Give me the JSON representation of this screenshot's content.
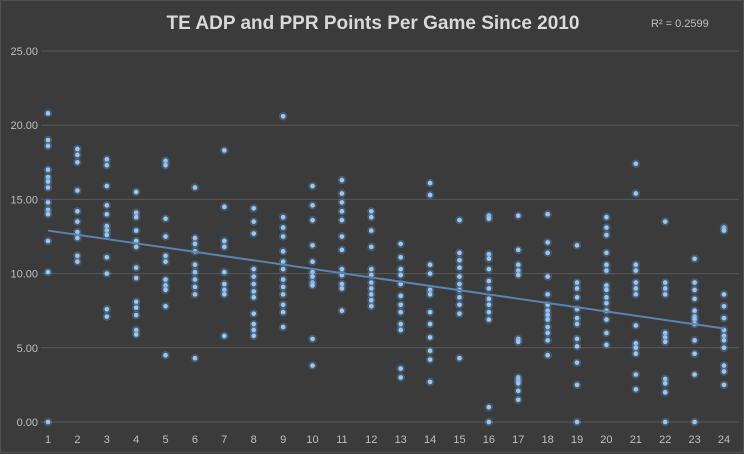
{
  "chart_data": {
    "type": "scatter",
    "title": "TE ADP and PPR Points Per Game Since 2010",
    "annotation": "R² = 0.2599",
    "xlabel": "",
    "ylabel": "",
    "xlim": [
      1,
      24
    ],
    "ylim": [
      0,
      25
    ],
    "x_ticks": [
      1,
      2,
      3,
      4,
      5,
      6,
      7,
      8,
      9,
      10,
      11,
      12,
      13,
      14,
      15,
      16,
      17,
      18,
      19,
      20,
      21,
      22,
      23,
      24
    ],
    "y_ticks": [
      "0.00",
      "5.00",
      "10.00",
      "15.00",
      "20.00",
      "25.00"
    ],
    "grid": "horizontal",
    "legend": "none",
    "colors": {
      "points": "#5b9bd5",
      "trendline": "#5b84b1",
      "grid": "#595959",
      "text": "#bfbfbf"
    },
    "trendline": {
      "type": "linear",
      "x": [
        1,
        24
      ],
      "y": [
        12.9,
        6.3
      ]
    },
    "points": [
      {
        "x": 1,
        "y": [
          20.8,
          19.0,
          18.6,
          17.0,
          16.5,
          16.2,
          15.8,
          14.8,
          14.3,
          14.0,
          12.2,
          10.1,
          0.0
        ]
      },
      {
        "x": 2,
        "y": [
          18.4,
          18.0,
          17.5,
          15.6,
          14.2,
          13.5,
          12.8,
          12.4,
          11.2,
          10.8
        ]
      },
      {
        "x": 3,
        "y": [
          17.7,
          17.3,
          15.9,
          14.6,
          14.0,
          13.2,
          12.9,
          12.6,
          11.1,
          10.0,
          7.6,
          7.1
        ]
      },
      {
        "x": 4,
        "y": [
          15.5,
          14.1,
          13.8,
          12.9,
          12.2,
          11.8,
          10.4,
          9.7,
          8.1,
          7.7,
          7.2,
          6.2,
          5.9
        ]
      },
      {
        "x": 5,
        "y": [
          17.6,
          17.3,
          13.7,
          12.5,
          11.2,
          10.8,
          9.6,
          9.2,
          8.9,
          7.8,
          4.5
        ]
      },
      {
        "x": 6,
        "y": [
          15.8,
          12.4,
          12.0,
          11.5,
          10.6,
          10.1,
          9.6,
          9.1,
          8.6,
          4.3
        ]
      },
      {
        "x": 7,
        "y": [
          18.3,
          14.5,
          12.2,
          11.8,
          10.1,
          9.3,
          8.9,
          8.6,
          5.8
        ]
      },
      {
        "x": 8,
        "y": [
          14.4,
          13.5,
          12.7,
          10.3,
          9.8,
          9.3,
          8.8,
          8.4,
          7.3,
          6.6,
          6.2,
          5.8
        ]
      },
      {
        "x": 9,
        "y": [
          20.6,
          13.8,
          13.1,
          12.5,
          11.5,
          10.8,
          10.3,
          9.6,
          9.1,
          8.6,
          7.9,
          7.4,
          6.4
        ]
      },
      {
        "x": 10,
        "y": [
          15.9,
          14.6,
          13.6,
          11.9,
          10.8,
          10.1,
          9.8,
          9.4,
          9.2,
          5.6,
          3.8
        ]
      },
      {
        "x": 11,
        "y": [
          16.3,
          15.4,
          14.8,
          14.2,
          13.6,
          12.5,
          11.6,
          10.3,
          9.9,
          9.3,
          9.0,
          7.5
        ]
      },
      {
        "x": 12,
        "y": [
          14.2,
          13.8,
          12.9,
          11.8,
          10.3,
          9.9,
          9.4,
          9.0,
          8.6,
          8.2,
          7.8
        ]
      },
      {
        "x": 13,
        "y": [
          12.0,
          11.1,
          10.3,
          9.9,
          9.3,
          8.5,
          7.9,
          7.4,
          6.6,
          6.2,
          3.6,
          3.0
        ]
      },
      {
        "x": 14,
        "y": [
          16.1,
          15.3,
          10.6,
          10.0,
          8.9,
          8.6,
          7.4,
          6.6,
          5.7,
          4.8,
          4.2,
          2.7
        ]
      },
      {
        "x": 15,
        "y": [
          13.6,
          11.4,
          10.9,
          10.4,
          9.8,
          9.3,
          8.9,
          8.4,
          7.9,
          7.3,
          4.3
        ]
      },
      {
        "x": 16,
        "y": [
          13.9,
          13.7,
          11.3,
          11.0,
          10.3,
          9.5,
          9.0,
          8.3,
          7.9,
          7.4,
          6.9,
          1.0,
          0.0
        ]
      },
      {
        "x": 17,
        "y": [
          13.9,
          11.6,
          10.6,
          10.2,
          9.9,
          5.6,
          5.4,
          3.0,
          2.8,
          2.6,
          2.1,
          1.5
        ]
      },
      {
        "x": 18,
        "y": [
          14.0,
          12.1,
          11.4,
          9.8,
          8.6,
          7.9,
          7.5,
          7.2,
          6.9,
          6.4,
          6.0,
          5.5,
          4.5
        ]
      },
      {
        "x": 19,
        "y": [
          11.9,
          9.4,
          9.0,
          8.4,
          7.6,
          7.0,
          6.6,
          5.6,
          5.1,
          4.0,
          2.5,
          0.0
        ]
      },
      {
        "x": 20,
        "y": [
          13.8,
          13.1,
          12.6,
          11.4,
          10.6,
          10.2,
          9.2,
          8.9,
          8.4,
          8.0,
          7.5,
          6.9,
          6.0,
          5.2
        ]
      },
      {
        "x": 21,
        "y": [
          17.4,
          15.4,
          10.6,
          10.2,
          9.4,
          9.0,
          8.6,
          6.5,
          5.3,
          5.0,
          4.6,
          3.2,
          2.2
        ]
      },
      {
        "x": 22,
        "y": [
          13.5,
          9.4,
          9.0,
          8.6,
          6.0,
          5.7,
          5.4,
          2.9,
          2.6,
          2.0,
          0.0
        ]
      },
      {
        "x": 23,
        "y": [
          11.0,
          9.4,
          8.9,
          8.3,
          7.5,
          7.1,
          6.9,
          6.6,
          5.5,
          4.6,
          3.2,
          0.0
        ]
      },
      {
        "x": 24,
        "y": [
          13.1,
          12.9,
          8.6,
          7.8,
          7.0,
          6.2,
          5.8,
          5.5,
          5.0,
          3.8,
          3.4,
          2.5
        ]
      }
    ]
  }
}
